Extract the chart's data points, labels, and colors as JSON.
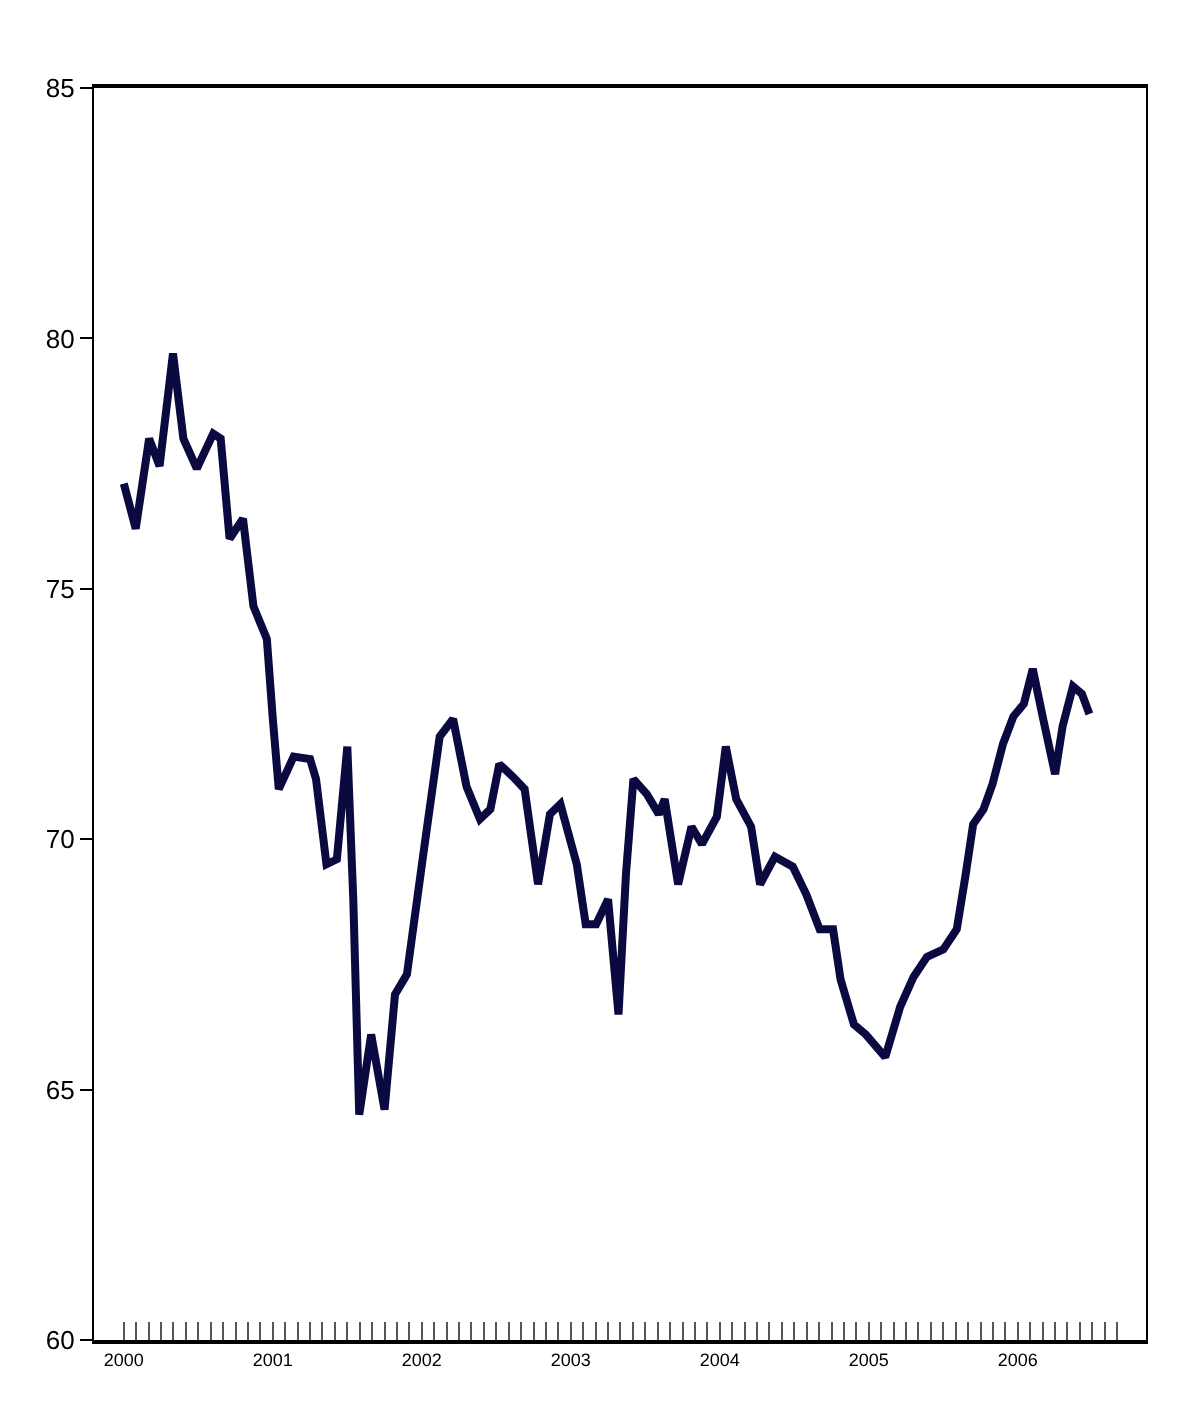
{
  "chart_data": {
    "type": "line",
    "line_style": "solid",
    "marker": "none",
    "x": [
      2000.0,
      2000.08,
      2000.17,
      2000.24,
      2000.33,
      2000.4,
      2000.49,
      2000.6,
      2000.65,
      2000.71,
      2000.8,
      2000.87,
      2000.96,
      2001.0,
      2001.04,
      2001.14,
      2001.25,
      2001.29,
      2001.36,
      2001.43,
      2001.5,
      2001.54,
      2001.58,
      2001.66,
      2001.75,
      2001.82,
      2001.9,
      2002.01,
      2002.12,
      2002.21,
      2002.3,
      2002.39,
      2002.46,
      2002.52,
      2002.61,
      2002.69,
      2002.78,
      2002.86,
      2002.93,
      2003.04,
      2003.1,
      2003.17,
      2003.25,
      2003.32,
      2003.37,
      2003.42,
      2003.51,
      2003.59,
      2003.63,
      2003.72,
      2003.81,
      2003.88,
      2003.98,
      2004.04,
      2004.11,
      2004.21,
      2004.27,
      2004.37,
      2004.49,
      2004.58,
      2004.67,
      2004.76,
      2004.81,
      2004.9,
      2004.98,
      2005.11,
      2005.21,
      2005.3,
      2005.39,
      2005.5,
      2005.59,
      2005.65,
      2005.7,
      2005.77,
      2005.83,
      2005.9,
      2005.97,
      2006.04,
      2006.1,
      2006.17,
      2006.25,
      2006.3,
      2006.37,
      2006.43,
      2006.48
    ],
    "series": [
      {
        "color": "#0a0a40",
        "values": [
          77.1,
          76.2,
          78.0,
          77.45,
          79.7,
          78.0,
          77.4,
          78.1,
          78.0,
          76.0,
          76.4,
          74.65,
          74.0,
          72.4,
          71.0,
          71.65,
          71.6,
          71.2,
          69.5,
          69.6,
          71.85,
          68.8,
          64.5,
          66.1,
          64.6,
          66.9,
          67.3,
          69.7,
          72.05,
          72.4,
          71.05,
          70.4,
          70.6,
          71.5,
          71.25,
          71.0,
          69.1,
          70.5,
          70.7,
          69.5,
          68.3,
          68.3,
          68.8,
          66.5,
          69.3,
          71.2,
          70.9,
          70.5,
          70.8,
          69.1,
          70.25,
          69.9,
          70.45,
          71.85,
          70.8,
          70.25,
          69.1,
          69.65,
          69.45,
          68.9,
          68.2,
          68.2,
          67.2,
          66.3,
          66.1,
          65.65,
          66.65,
          67.25,
          67.65,
          67.8,
          68.2,
          69.3,
          70.3,
          70.6,
          71.1,
          71.9,
          72.45,
          72.7,
          73.4,
          72.4,
          71.3,
          72.25,
          73.05,
          72.9,
          72.5
        ]
      }
    ],
    "xlim": [
      1999.8,
      2006.86
    ],
    "xticks": [
      {
        "value": 2000,
        "label": "2000"
      },
      {
        "value": 2000.083,
        "label": null
      },
      {
        "value": 2000.167,
        "label": null
      },
      {
        "value": 2000.25,
        "label": null
      },
      {
        "value": 2000.333,
        "label": null
      },
      {
        "value": 2000.417,
        "label": null
      },
      {
        "value": 2000.5,
        "label": null
      },
      {
        "value": 2000.583,
        "label": null
      },
      {
        "value": 2000.667,
        "label": null
      },
      {
        "value": 2000.75,
        "label": null
      },
      {
        "value": 2000.833,
        "label": null
      },
      {
        "value": 2000.917,
        "label": null
      },
      {
        "value": 2001,
        "label": "2001"
      },
      {
        "value": 2001.083,
        "label": null
      },
      {
        "value": 2001.167,
        "label": null
      },
      {
        "value": 2001.25,
        "label": null
      },
      {
        "value": 2001.333,
        "label": null
      },
      {
        "value": 2001.417,
        "label": null
      },
      {
        "value": 2001.5,
        "label": null
      },
      {
        "value": 2001.583,
        "label": null
      },
      {
        "value": 2001.667,
        "label": null
      },
      {
        "value": 2001.75,
        "label": null
      },
      {
        "value": 2001.833,
        "label": null
      },
      {
        "value": 2001.917,
        "label": null
      },
      {
        "value": 2002,
        "label": "2002"
      },
      {
        "value": 2002.083,
        "label": null
      },
      {
        "value": 2002.167,
        "label": null
      },
      {
        "value": 2002.25,
        "label": null
      },
      {
        "value": 2002.333,
        "label": null
      },
      {
        "value": 2002.417,
        "label": null
      },
      {
        "value": 2002.5,
        "label": null
      },
      {
        "value": 2002.583,
        "label": null
      },
      {
        "value": 2002.667,
        "label": null
      },
      {
        "value": 2002.75,
        "label": null
      },
      {
        "value": 2002.833,
        "label": null
      },
      {
        "value": 2002.917,
        "label": null
      },
      {
        "value": 2003,
        "label": "2003"
      },
      {
        "value": 2003.083,
        "label": null
      },
      {
        "value": 2003.167,
        "label": null
      },
      {
        "value": 2003.25,
        "label": null
      },
      {
        "value": 2003.333,
        "label": null
      },
      {
        "value": 2003.417,
        "label": null
      },
      {
        "value": 2003.5,
        "label": null
      },
      {
        "value": 2003.583,
        "label": null
      },
      {
        "value": 2003.667,
        "label": null
      },
      {
        "value": 2003.75,
        "label": null
      },
      {
        "value": 2003.833,
        "label": null
      },
      {
        "value": 2003.917,
        "label": null
      },
      {
        "value": 2004,
        "label": "2004"
      },
      {
        "value": 2004.083,
        "label": null
      },
      {
        "value": 2004.167,
        "label": null
      },
      {
        "value": 2004.25,
        "label": null
      },
      {
        "value": 2004.333,
        "label": null
      },
      {
        "value": 2004.417,
        "label": null
      },
      {
        "value": 2004.5,
        "label": null
      },
      {
        "value": 2004.583,
        "label": null
      },
      {
        "value": 2004.667,
        "label": null
      },
      {
        "value": 2004.75,
        "label": null
      },
      {
        "value": 2004.833,
        "label": null
      },
      {
        "value": 2004.917,
        "label": null
      },
      {
        "value": 2005,
        "label": "2005"
      },
      {
        "value": 2005.083,
        "label": null
      },
      {
        "value": 2005.167,
        "label": null
      },
      {
        "value": 2005.25,
        "label": null
      },
      {
        "value": 2005.333,
        "label": null
      },
      {
        "value": 2005.417,
        "label": null
      },
      {
        "value": 2005.5,
        "label": null
      },
      {
        "value": 2005.583,
        "label": null
      },
      {
        "value": 2005.667,
        "label": null
      },
      {
        "value": 2005.75,
        "label": null
      },
      {
        "value": 2005.833,
        "label": null
      },
      {
        "value": 2005.917,
        "label": null
      },
      {
        "value": 2006,
        "label": "2006"
      },
      {
        "value": 2006.083,
        "label": null
      },
      {
        "value": 2006.167,
        "label": null
      },
      {
        "value": 2006.25,
        "label": null
      },
      {
        "value": 2006.333,
        "label": null
      },
      {
        "value": 2006.417,
        "label": null
      },
      {
        "value": 2006.5,
        "label": null
      },
      {
        "value": 2006.583,
        "label": null
      },
      {
        "value": 2006.667,
        "label": null
      }
    ],
    "ylim": [
      60,
      85
    ],
    "yticks": [
      60,
      65,
      70,
      75,
      80,
      85
    ]
  }
}
